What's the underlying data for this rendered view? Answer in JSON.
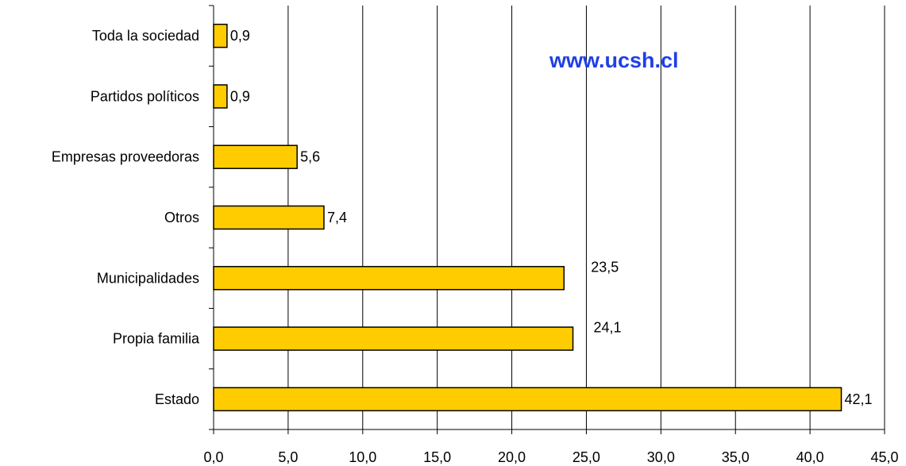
{
  "chart_data": {
    "type": "bar",
    "orientation": "horizontal",
    "categories": [
      "Toda la sociedad",
      "Partidos políticos",
      "Empresas proveedoras",
      "Otros",
      "Municipalidades",
      "Propia familia",
      "Estado"
    ],
    "values": [
      0.9,
      0.9,
      5.6,
      7.4,
      23.5,
      24.1,
      42.1
    ],
    "value_labels": [
      "0,9",
      "0,9",
      "5,6",
      "7,4",
      "23,5",
      "24,1",
      "42,1"
    ],
    "xlim": [
      0,
      45
    ],
    "x_ticks": [
      0,
      5,
      10,
      15,
      20,
      25,
      30,
      35,
      40,
      45
    ],
    "x_tick_labels": [
      "0,0",
      "5,0",
      "10,0",
      "15,0",
      "20,0",
      "25,0",
      "30,0",
      "35,0",
      "40,0",
      "45,0"
    ],
    "title": "",
    "xlabel": "",
    "ylabel": "",
    "grid": "vertical",
    "bar_color": "#ffcc00",
    "bar_edge_color": "#000000",
    "watermark": "www.ucsh.cl",
    "watermark_color": "#1f3fe8"
  }
}
